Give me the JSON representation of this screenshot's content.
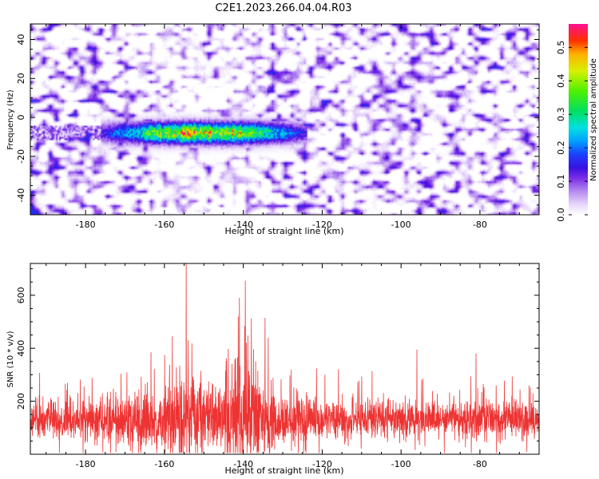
{
  "figure_title": "C2E1.2023.266.04.04.R03",
  "colors": {
    "snr_line": "#ee3333",
    "axis": "#000000",
    "background": "#ffffff"
  },
  "colormap_stops": [
    {
      "v": 0.0,
      "color": "#ffffff"
    },
    {
      "v": 0.03,
      "color": "#e8d8fb"
    },
    {
      "v": 0.07,
      "color": "#b58af0"
    },
    {
      "v": 0.11,
      "color": "#7a2de6"
    },
    {
      "v": 0.14,
      "color": "#3a10e0"
    },
    {
      "v": 0.18,
      "color": "#1a40ff"
    },
    {
      "v": 0.22,
      "color": "#00a0ff"
    },
    {
      "v": 0.26,
      "color": "#00e0e0"
    },
    {
      "v": 0.31,
      "color": "#00e060"
    },
    {
      "v": 0.37,
      "color": "#50f000"
    },
    {
      "v": 0.43,
      "color": "#d8f000"
    },
    {
      "v": 0.48,
      "color": "#ffb000"
    },
    {
      "v": 0.52,
      "color": "#ff3000"
    },
    {
      "v": 0.57,
      "color": "#ff1090"
    }
  ],
  "chart_data": [
    {
      "type": "heatmap",
      "title": "",
      "xlabel": "Height of straight line (km)",
      "ylabel": "Frequency (Hz)",
      "xlim": [
        -194,
        -65
      ],
      "ylim": [
        -50,
        48
      ],
      "xticks": [
        -180,
        -160,
        -140,
        -120,
        -100,
        -80
      ],
      "yticks": [
        -40,
        -20,
        0,
        20,
        40
      ],
      "colorbar": {
        "label": "Normalized spectral amplitude",
        "range": [
          0,
          0.57
        ],
        "ticks": [
          "0.0",
          "0.1",
          "0.2",
          "0.3",
          "0.4",
          "0.5"
        ]
      },
      "features": [
        {
          "description": "enhanced amplitude band",
          "x_range": [
            -176,
            -124
          ],
          "frequency_hz": -8,
          "max_amplitude": 0.55
        }
      ]
    },
    {
      "type": "line",
      "title": "",
      "xlabel": "Height of straight line (km)",
      "ylabel": "SNR (10 * v/v)",
      "xlim": [
        -194,
        -65
      ],
      "ylim": [
        0,
        720
      ],
      "xticks": [
        -180,
        -160,
        -140,
        -120,
        -100,
        -80
      ],
      "yticks": [
        200,
        400,
        600
      ],
      "series": [
        {
          "color": "#ee3333",
          "baseline": 130,
          "peaks": [
            {
              "x": -154.5,
              "y": 720
            },
            {
              "x": -139.5,
              "y": 655
            },
            {
              "x": -141.0,
              "y": 590
            },
            {
              "x": -134.5,
              "y": 515
            },
            {
              "x": -158.0,
              "y": 445
            },
            {
              "x": -96.0,
              "y": 395
            },
            {
              "x": -81.0,
              "y": 380
            }
          ]
        }
      ]
    }
  ]
}
